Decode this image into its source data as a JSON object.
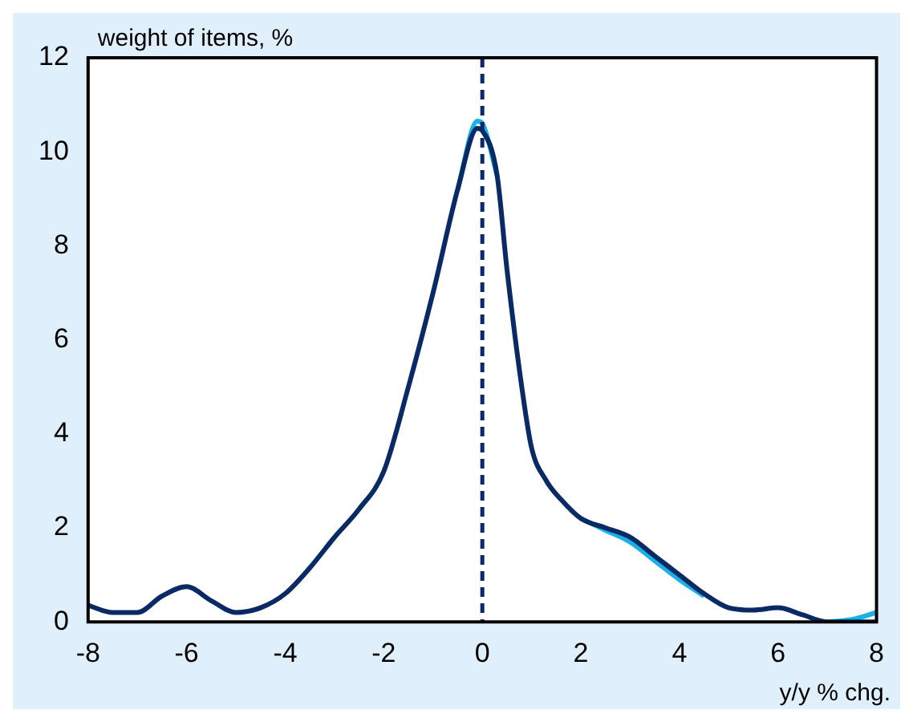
{
  "chart_data": {
    "type": "line",
    "ylabel": "weight of items, %",
    "xlabel": "y/y % chg.",
    "xlim": [
      -8,
      8
    ],
    "xticks": [
      -8,
      -6,
      -4,
      -2,
      0,
      2,
      4,
      6,
      8
    ],
    "ylim": [
      0,
      12
    ],
    "yticks": [
      0,
      2,
      4,
      6,
      8,
      10,
      12
    ],
    "grid": false,
    "legend": false,
    "marker": "none",
    "line_style": "solid",
    "ref_lines": [
      {
        "axis": "x",
        "value": 0,
        "color": "#0a2a66",
        "line_style": "dashed"
      }
    ],
    "series": [
      {
        "color": "#1ab0e8",
        "x": [
          -0.5,
          -0.1,
          0,
          0.3
        ],
        "values": [
          9.2,
          10.65,
          10.6,
          9.5
        ]
      },
      {
        "color": "#1ab0e8",
        "x": [
          2,
          2.5,
          3,
          3.5,
          4,
          4.5
        ],
        "values": [
          2.2,
          1.95,
          1.7,
          1.3,
          0.9,
          0.55
        ]
      },
      {
        "color": "#1ab0e8",
        "x": [
          7,
          7.5,
          8
        ],
        "values": [
          0,
          0.05,
          0.2
        ]
      },
      {
        "color": "#0a2a66",
        "x": [
          -8,
          -7.5,
          -7,
          -6.5,
          -6,
          -5.5,
          -5,
          -4.5,
          -4,
          -3.5,
          -3,
          -2.5,
          -2,
          -1.5,
          -1,
          -0.5,
          -0.1,
          0,
          0.3,
          0.5,
          0.8,
          1,
          1.3,
          1.6,
          2,
          2.5,
          3,
          3.5,
          4,
          4.5,
          5,
          5.5,
          6,
          6.5,
          7,
          7.5,
          8
        ],
        "values": [
          0.35,
          0.2,
          0.2,
          0.55,
          0.75,
          0.45,
          0.2,
          0.3,
          0.6,
          1.15,
          1.8,
          2.4,
          3.2,
          5.0,
          7.0,
          9.2,
          10.5,
          10.45,
          9.5,
          7.5,
          5.0,
          3.7,
          3.0,
          2.6,
          2.2,
          2.0,
          1.8,
          1.4,
          1.0,
          0.6,
          0.3,
          0.25,
          0.3,
          0.15,
          0,
          0,
          0
        ]
      }
    ]
  }
}
